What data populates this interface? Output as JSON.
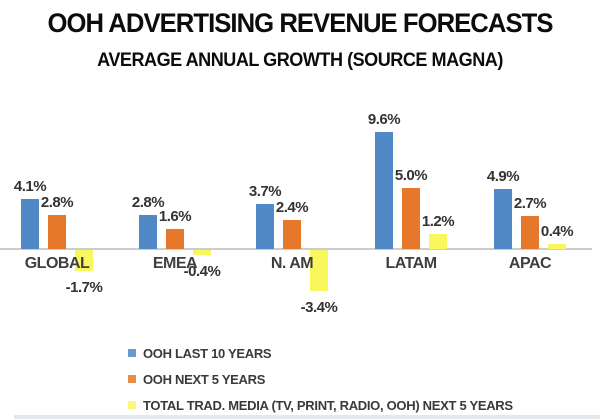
{
  "title": "OOH ADVERTISING REVENUE FORECASTS",
  "subtitle": "AVERAGE ANNUAL GROWTH (SOURCE MAGNA)",
  "colors": {
    "blue": "#5089c6",
    "orange": "#e5782b",
    "yellow": "#f9f75e",
    "axis": "#cccccc",
    "value_text": "#333333",
    "category_text": "#3f3f3f",
    "title_text": "#0c0c0c"
  },
  "chart_data": {
    "type": "bar",
    "title": "OOH ADVERTISING REVENUE FORECASTS",
    "subtitle": "AVERAGE ANNUAL GROWTH (SOURCE MAGNA)",
    "unit": "%",
    "categories": [
      "GLOBAL",
      "EMEA",
      "N. AM",
      "LATAM",
      "APAC"
    ],
    "series": [
      {
        "name": "OOH LAST 10 YEARS",
        "color_key": "blue",
        "values": [
          4.1,
          2.8,
          3.7,
          9.6,
          4.9
        ],
        "labels": [
          "4.1%",
          "2.8%",
          "3.7%",
          "9.6%",
          "4.9%"
        ]
      },
      {
        "name": "OOH NEXT 5 YEARS",
        "color_key": "orange",
        "values": [
          2.8,
          1.6,
          2.4,
          5.0,
          2.7
        ],
        "labels": [
          "2.8%",
          "1.6%",
          "2.4%",
          "5.0%",
          "2.7%"
        ]
      },
      {
        "name": "TOTAL TRAD. MEDIA (TV, PRINT, RADIO, OOH) NEXT 5 YEARS",
        "color_key": "yellow",
        "values": [
          -1.7,
          -0.4,
          -3.4,
          1.2,
          0.4
        ],
        "labels": [
          "-1.7%",
          "-0.4%",
          "-3.4%",
          "1.2%",
          "0.4%"
        ]
      }
    ],
    "baseline": 0,
    "grid": false,
    "axis_ticks_shown": false,
    "data_labels_shown": true,
    "legend_position": "bottom-left"
  }
}
